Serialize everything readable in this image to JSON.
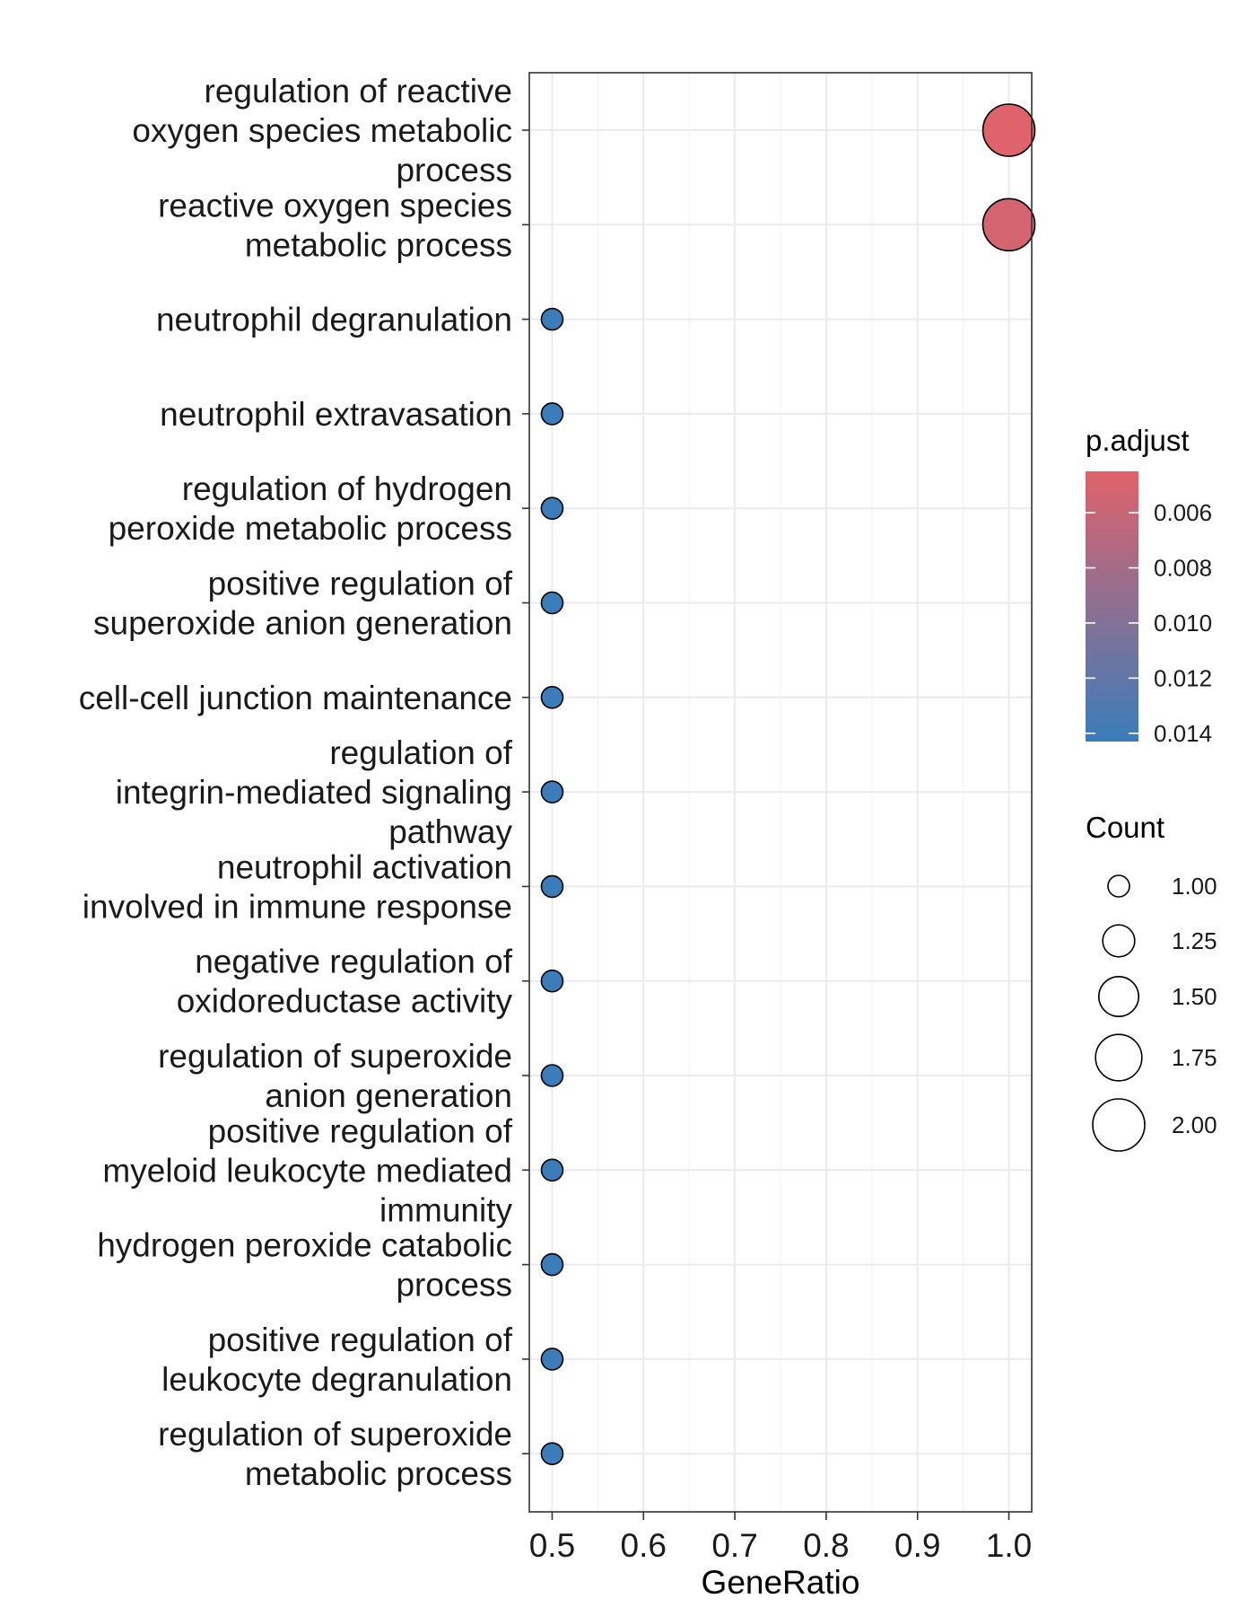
{
  "chart_data": {
    "type": "scatter",
    "xlabel": "GeneRatio",
    "xlim": [
      0.475,
      1.025
    ],
    "x_ticks": [
      0.5,
      0.6,
      0.7,
      0.8,
      0.9,
      1.0
    ],
    "x_tick_labels": [
      "0.5",
      "0.6",
      "0.7",
      "0.8",
      "0.9",
      "1.0"
    ],
    "grid": true,
    "legend_position": "right",
    "points": [
      {
        "term": [
          "regulation of reactive",
          "oxygen species metabolic",
          "process"
        ],
        "gene_ratio": 1.0,
        "count": 2,
        "p_adjust": 0.0045
      },
      {
        "term": [
          "reactive oxygen species",
          "metabolic process"
        ],
        "gene_ratio": 1.0,
        "count": 2,
        "p_adjust": 0.0052
      },
      {
        "term": [
          "neutrophil degranulation"
        ],
        "gene_ratio": 0.5,
        "count": 1,
        "p_adjust": 0.0143
      },
      {
        "term": [
          "neutrophil extravasation"
        ],
        "gene_ratio": 0.5,
        "count": 1,
        "p_adjust": 0.0143
      },
      {
        "term": [
          "regulation of hydrogen",
          "peroxide metabolic process"
        ],
        "gene_ratio": 0.5,
        "count": 1,
        "p_adjust": 0.0143
      },
      {
        "term": [
          "positive regulation of",
          "superoxide anion generation"
        ],
        "gene_ratio": 0.5,
        "count": 1,
        "p_adjust": 0.0143
      },
      {
        "term": [
          "cell-cell junction maintenance"
        ],
        "gene_ratio": 0.5,
        "count": 1,
        "p_adjust": 0.0143
      },
      {
        "term": [
          "regulation of",
          "integrin-mediated signaling",
          "pathway"
        ],
        "gene_ratio": 0.5,
        "count": 1,
        "p_adjust": 0.0143
      },
      {
        "term": [
          "neutrophil activation",
          "involved in immune response"
        ],
        "gene_ratio": 0.5,
        "count": 1,
        "p_adjust": 0.0143
      },
      {
        "term": [
          "negative regulation of",
          "oxidoreductase activity"
        ],
        "gene_ratio": 0.5,
        "count": 1,
        "p_adjust": 0.0143
      },
      {
        "term": [
          "regulation of superoxide",
          "anion generation"
        ],
        "gene_ratio": 0.5,
        "count": 1,
        "p_adjust": 0.0143
      },
      {
        "term": [
          "positive regulation of",
          "myeloid leukocyte mediated",
          "immunity"
        ],
        "gene_ratio": 0.5,
        "count": 1,
        "p_adjust": 0.0143
      },
      {
        "term": [
          "hydrogen peroxide catabolic",
          "process"
        ],
        "gene_ratio": 0.5,
        "count": 1,
        "p_adjust": 0.0143
      },
      {
        "term": [
          "positive regulation of",
          "leukocyte degranulation"
        ],
        "gene_ratio": 0.5,
        "count": 1,
        "p_adjust": 0.0143
      },
      {
        "term": [
          "regulation of superoxide",
          "metabolic process"
        ],
        "gene_ratio": 0.5,
        "count": 1,
        "p_adjust": 0.0143
      }
    ],
    "color_legend": {
      "title": "p.adjust",
      "range": [
        0.0045,
        0.0143
      ],
      "color_low_value": "#E0626A",
      "color_high_value": "#3A7DBA",
      "ticks": [
        0.006,
        0.008,
        0.01,
        0.012,
        0.014
      ],
      "tick_labels": [
        "0.006",
        "0.008",
        "0.010",
        "0.012",
        "0.014"
      ]
    },
    "size_legend": {
      "title": "Count",
      "range": [
        1,
        2
      ],
      "values": [
        1.0,
        1.25,
        1.5,
        1.75,
        2.0
      ],
      "labels": [
        "1.00",
        "1.25",
        "1.50",
        "1.75",
        "2.00"
      ]
    }
  }
}
